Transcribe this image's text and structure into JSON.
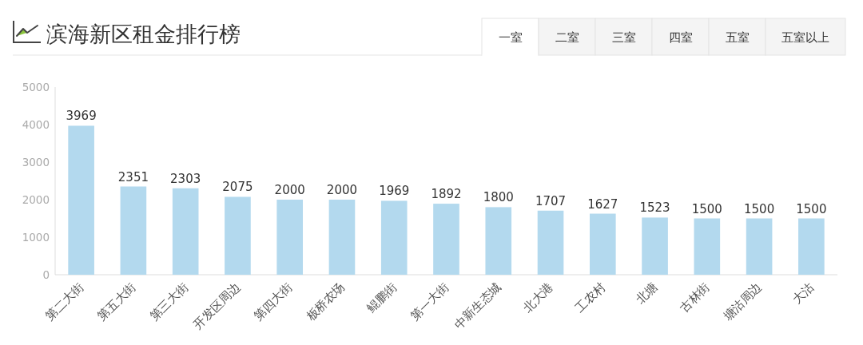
{
  "chart_data": {
    "type": "bar",
    "title": "滨海新区租金排行榜",
    "categories": [
      "第二大街",
      "第五大街",
      "第三大街",
      "开发区周边",
      "第四大街",
      "板桥农场",
      "鲲鹏街",
      "第一大街",
      "中新生态城",
      "北大港",
      "工农村",
      "北塘",
      "古林街",
      "塘沽周边",
      "大沽"
    ],
    "values": [
      3969,
      2351,
      2303,
      2075,
      2000,
      2000,
      1969,
      1892,
      1800,
      1707,
      1627,
      1523,
      1500,
      1500,
      1500
    ],
    "color": "#b3d9ee",
    "ylim": [
      0,
      5000
    ],
    "yticks": [
      0,
      1000,
      2000,
      3000,
      4000,
      5000
    ],
    "data_labels": true,
    "annotations": [
      "一室",
      "二室",
      "三室",
      "四室",
      "五室",
      "五室以上"
    ]
  }
}
